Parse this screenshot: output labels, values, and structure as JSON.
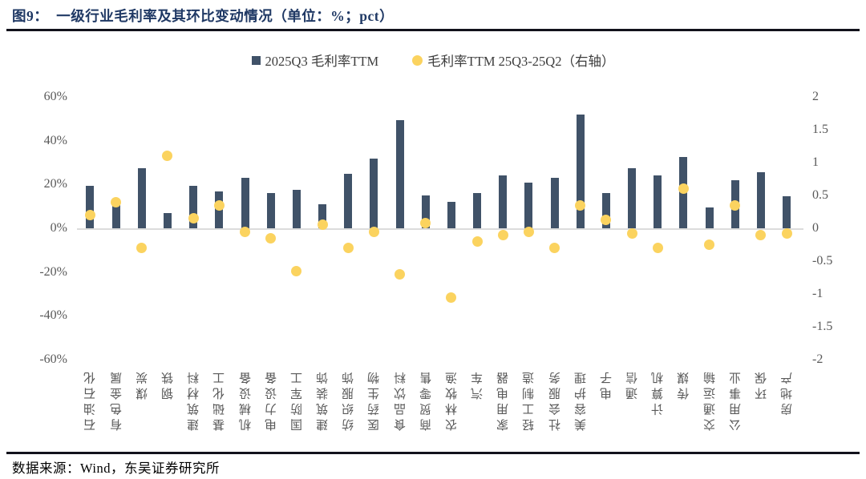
{
  "figure": {
    "title_prefix": "图9：",
    "title_text": "一级行业毛利率及其环比变动情况（单位：%；pct）",
    "source": "数据来源：Wind，东吴证券研究所"
  },
  "colors": {
    "bar": "#405268",
    "dot": "#FBD35F",
    "title": "#1F3864",
    "axis_text": "#595959",
    "zero_line": "#DCDCDC",
    "rule": "#12121c"
  },
  "legend": {
    "items": [
      {
        "label": "2025Q3 毛利率TTM",
        "marker": "square"
      },
      {
        "label": "毛利率TTM 25Q3-25Q2（右轴）",
        "marker": "circle"
      }
    ]
  },
  "chart_data": {
    "type": "bar",
    "subtype": "bar + scatter (dual axis)",
    "title": "一级行业毛利率及其环比变动情况（单位：%；pct）",
    "grid": "zero-line only",
    "legend_position": "top-center",
    "categories": [
      "石油石化",
      "有色金属",
      "煤炭",
      "钢铁",
      "建筑材料",
      "基础化工",
      "机械设备",
      "电力设备",
      "国防军工",
      "建筑装饰",
      "纺织服饰",
      "医药生物",
      "食品饮料",
      "商贸零售",
      "农林牧渔",
      "汽车",
      "家用电器",
      "轻工制造",
      "社会服务",
      "美容护理",
      "电子",
      "通信",
      "计算机",
      "传媒",
      "交通运输",
      "公用事业",
      "环保",
      "房地产"
    ],
    "series": [
      {
        "name": "2025Q3 毛利率TTM",
        "type": "bar",
        "axis": "left",
        "unit": "%",
        "values": [
          19.5,
          12,
          27.5,
          7,
          19.5,
          17,
          23,
          16,
          17.5,
          11,
          25,
          32,
          49.5,
          15,
          12,
          16,
          24,
          21,
          23,
          52,
          16,
          27.5,
          24,
          32.5,
          9.5,
          22,
          25.5,
          14.5
        ]
      },
      {
        "name": "毛利率TTM 25Q3-25Q2（右轴）",
        "type": "scatter",
        "axis": "right",
        "unit": "pct",
        "values": [
          0.2,
          0.4,
          -0.3,
          1.1,
          0.15,
          0.35,
          -0.05,
          -0.15,
          -0.65,
          0.05,
          -0.3,
          -0.05,
          -0.7,
          0.08,
          -1.05,
          -0.2,
          -0.1,
          -0.05,
          -0.3,
          0.35,
          0.13,
          -0.08,
          -0.3,
          0.6,
          -0.25,
          0.35,
          -0.1,
          -0.08
        ]
      }
    ],
    "left_axis": {
      "ticks": [
        "60%",
        "40%",
        "20%",
        "0%",
        "-20%",
        "-40%",
        "-60%"
      ],
      "min": -60,
      "max": 60
    },
    "right_axis": {
      "ticks": [
        "2",
        "1.5",
        "1",
        "0.5",
        "0",
        "-0.5",
        "-1",
        "-1.5",
        "-2"
      ],
      "min": -2,
      "max": 2
    }
  }
}
